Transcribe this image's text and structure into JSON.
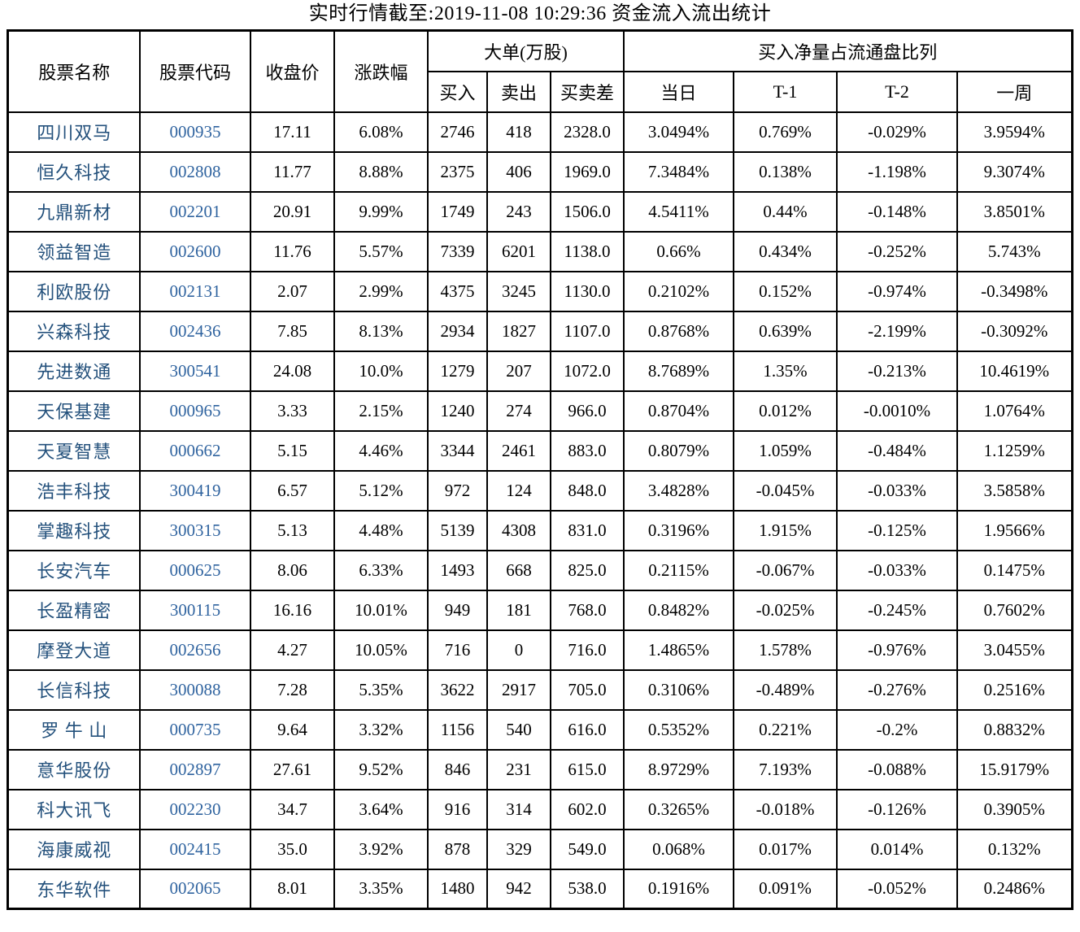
{
  "title": "实时行情截至:2019-11-08 10:29:36 资金流入流出统计",
  "colors": {
    "stock_name_text": "#24517C",
    "stock_code_text": "#2F639F",
    "border": "#000000",
    "background": "#ffffff"
  },
  "table": {
    "header": {
      "name": "股票名称",
      "code": "股票代码",
      "close": "收盘价",
      "change": "涨跌幅",
      "big_order_group": "大单(万股)",
      "buy": "买入",
      "sell": "卖出",
      "diff": "买卖差",
      "net_ratio_group": "买入净量占流通盘比列",
      "today": "当日",
      "t_minus_1": "T-1",
      "t_minus_2": "T-2",
      "week": "一周"
    },
    "rows": [
      [
        "四川双马",
        "000935",
        "17.11",
        "6.08%",
        "2746",
        "418",
        "2328.0",
        "3.0494%",
        "0.769%",
        "-0.029%",
        "3.9594%"
      ],
      [
        "恒久科技",
        "002808",
        "11.77",
        "8.88%",
        "2375",
        "406",
        "1969.0",
        "7.3484%",
        "0.138%",
        "-1.198%",
        "9.3074%"
      ],
      [
        "九鼎新材",
        "002201",
        "20.91",
        "9.99%",
        "1749",
        "243",
        "1506.0",
        "4.5411%",
        "0.44%",
        "-0.148%",
        "3.8501%"
      ],
      [
        "领益智造",
        "002600",
        "11.76",
        "5.57%",
        "7339",
        "6201",
        "1138.0",
        "0.66%",
        "0.434%",
        "-0.252%",
        "5.743%"
      ],
      [
        "利欧股份",
        "002131",
        "2.07",
        "2.99%",
        "4375",
        "3245",
        "1130.0",
        "0.2102%",
        "0.152%",
        "-0.974%",
        "-0.3498%"
      ],
      [
        "兴森科技",
        "002436",
        "7.85",
        "8.13%",
        "2934",
        "1827",
        "1107.0",
        "0.8768%",
        "0.639%",
        "-2.199%",
        "-0.3092%"
      ],
      [
        "先进数通",
        "300541",
        "24.08",
        "10.0%",
        "1279",
        "207",
        "1072.0",
        "8.7689%",
        "1.35%",
        "-0.213%",
        "10.4619%"
      ],
      [
        "天保基建",
        "000965",
        "3.33",
        "2.15%",
        "1240",
        "274",
        "966.0",
        "0.8704%",
        "0.012%",
        "-0.0010%",
        "1.0764%"
      ],
      [
        "天夏智慧",
        "000662",
        "5.15",
        "4.46%",
        "3344",
        "2461",
        "883.0",
        "0.8079%",
        "1.059%",
        "-0.484%",
        "1.1259%"
      ],
      [
        "浩丰科技",
        "300419",
        "6.57",
        "5.12%",
        "972",
        "124",
        "848.0",
        "3.4828%",
        "-0.045%",
        "-0.033%",
        "3.5858%"
      ],
      [
        "掌趣科技",
        "300315",
        "5.13",
        "4.48%",
        "5139",
        "4308",
        "831.0",
        "0.3196%",
        "1.915%",
        "-0.125%",
        "1.9566%"
      ],
      [
        "长安汽车",
        "000625",
        "8.06",
        "6.33%",
        "1493",
        "668",
        "825.0",
        "0.2115%",
        "-0.067%",
        "-0.033%",
        "0.1475%"
      ],
      [
        "长盈精密",
        "300115",
        "16.16",
        "10.01%",
        "949",
        "181",
        "768.0",
        "0.8482%",
        "-0.025%",
        "-0.245%",
        "0.7602%"
      ],
      [
        "摩登大道",
        "002656",
        "4.27",
        "10.05%",
        "716",
        "0",
        "716.0",
        "1.4865%",
        "1.578%",
        "-0.976%",
        "3.0455%"
      ],
      [
        "长信科技",
        "300088",
        "7.28",
        "5.35%",
        "3622",
        "2917",
        "705.0",
        "0.3106%",
        "-0.489%",
        "-0.276%",
        "0.2516%"
      ],
      [
        "罗 牛 山",
        "000735",
        "9.64",
        "3.32%",
        "1156",
        "540",
        "616.0",
        "0.5352%",
        "0.221%",
        "-0.2%",
        "0.8832%"
      ],
      [
        "意华股份",
        "002897",
        "27.61",
        "9.52%",
        "846",
        "231",
        "615.0",
        "8.9729%",
        "7.193%",
        "-0.088%",
        "15.9179%"
      ],
      [
        "科大讯飞",
        "002230",
        "34.7",
        "3.64%",
        "916",
        "314",
        "602.0",
        "0.3265%",
        "-0.018%",
        "-0.126%",
        "0.3905%"
      ],
      [
        "海康威视",
        "002415",
        "35.0",
        "3.92%",
        "878",
        "329",
        "549.0",
        "0.068%",
        "0.017%",
        "0.014%",
        "0.132%"
      ],
      [
        "东华软件",
        "002065",
        "8.01",
        "3.35%",
        "1480",
        "942",
        "538.0",
        "0.1916%",
        "0.091%",
        "-0.052%",
        "0.2486%"
      ]
    ]
  }
}
